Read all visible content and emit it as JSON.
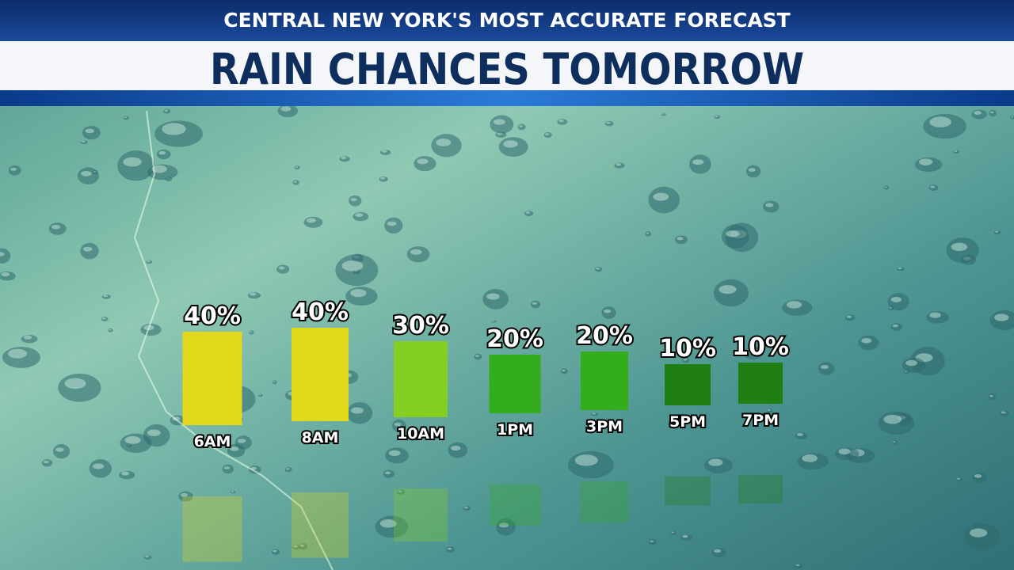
{
  "chart_data": {
    "type": "bar",
    "subtitle": "CENTRAL NEW YORK'S MOST ACCURATE FORECAST",
    "title": "RAIN CHANCES TOMORROW",
    "categories": [
      "6AM",
      "8AM",
      "10AM",
      "1PM",
      "3PM",
      "5PM",
      "7PM"
    ],
    "values": [
      40,
      40,
      30,
      20,
      20,
      10,
      10
    ],
    "value_labels": [
      "40%",
      "40%",
      "30%",
      "20%",
      "20%",
      "10%",
      "10%"
    ],
    "colors": [
      "#e2d81c",
      "#e2d81c",
      "#84cf22",
      "#34ad1c",
      "#34ad1c",
      "#1f7e14",
      "#1f7e14"
    ]
  }
}
